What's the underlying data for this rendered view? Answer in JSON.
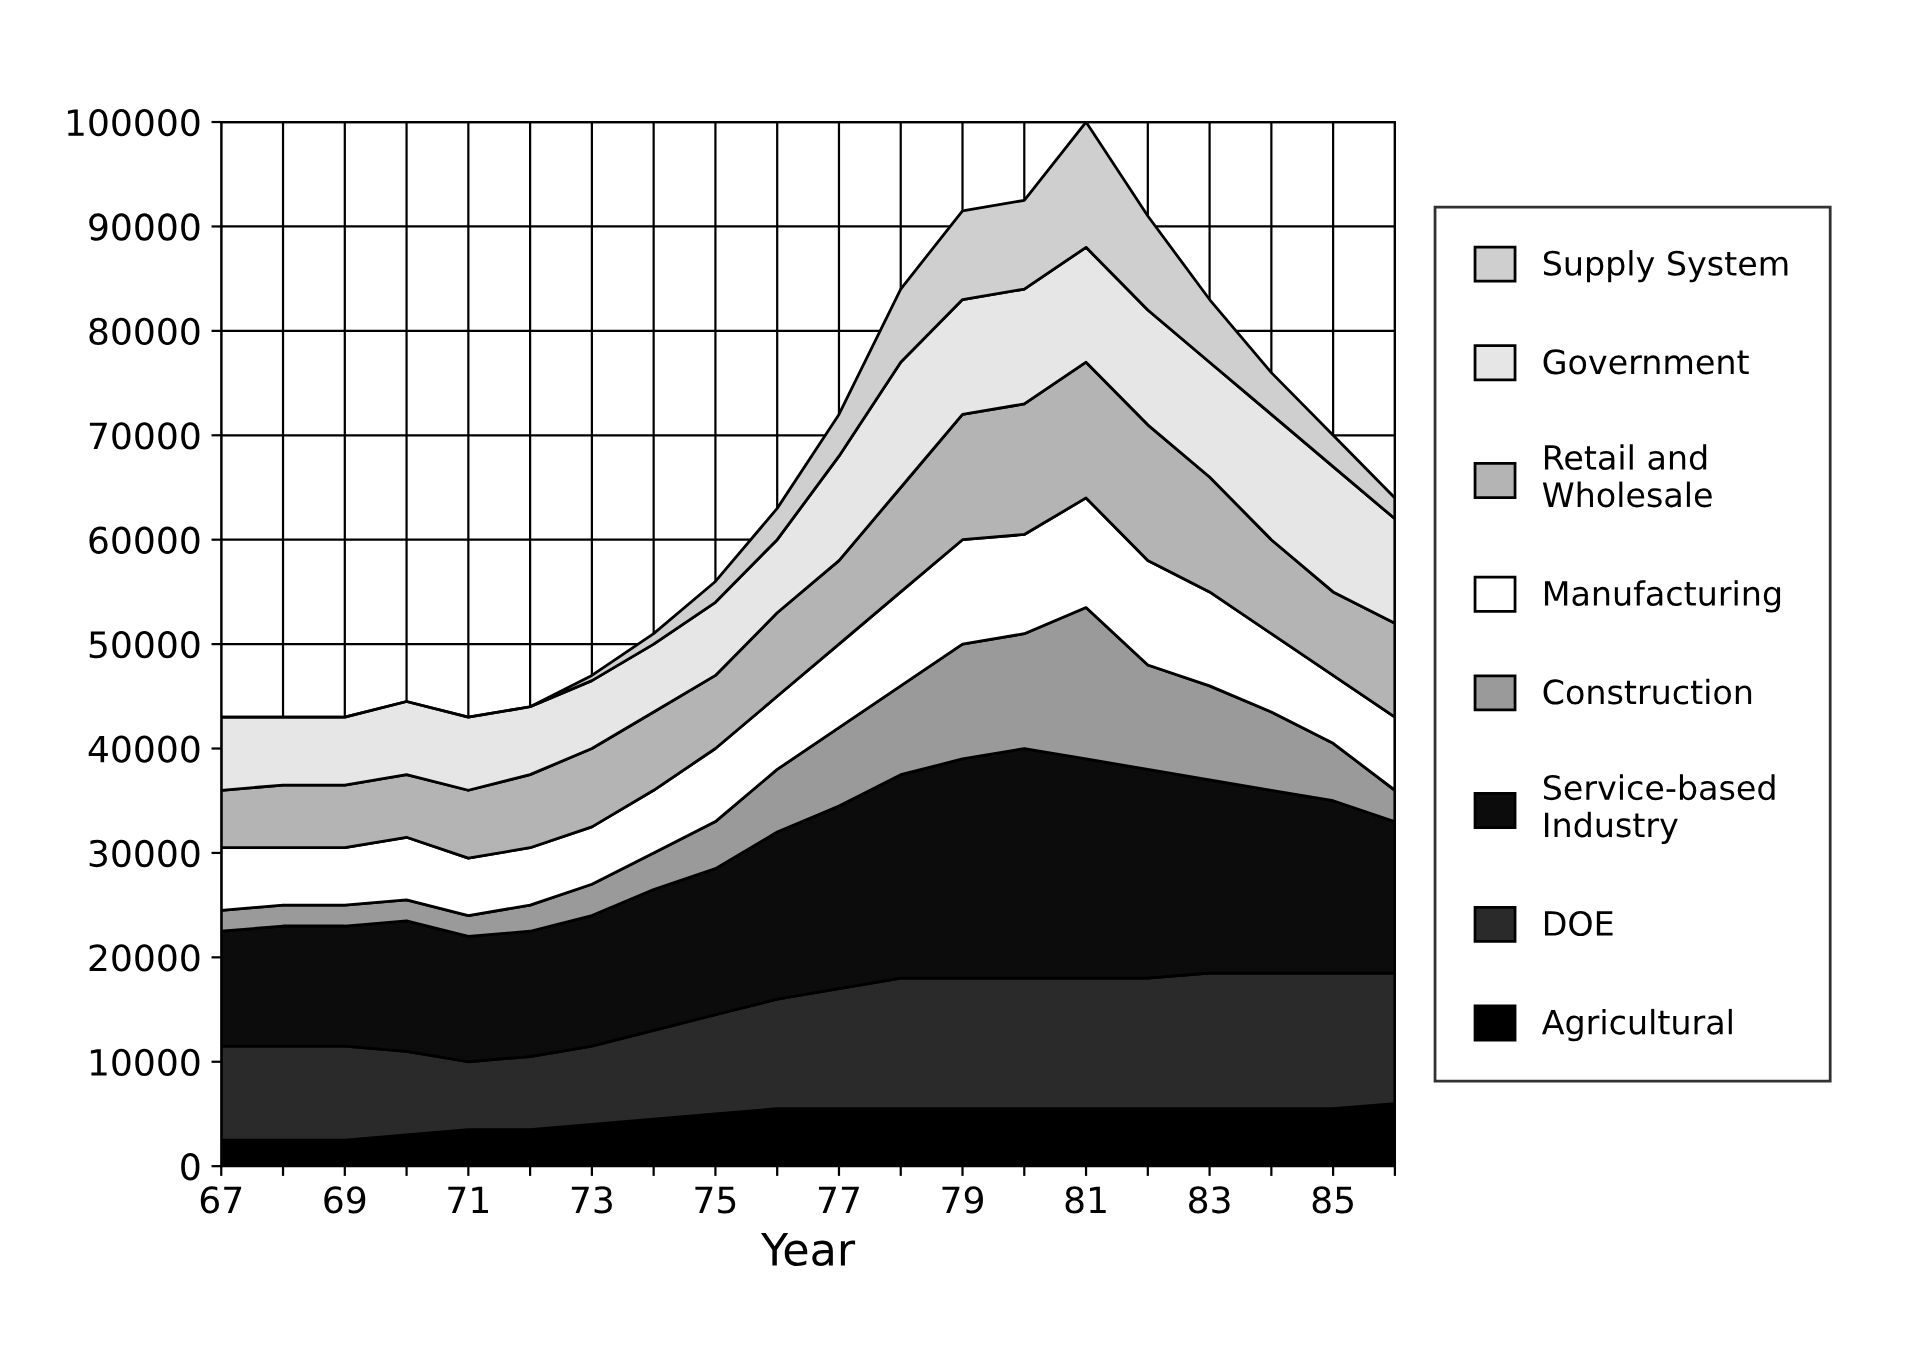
{
  "chart_data": {
    "type": "area",
    "stacked": true,
    "xlabel": "Year",
    "x": [
      67,
      68,
      69,
      70,
      71,
      72,
      73,
      74,
      75,
      76,
      77,
      78,
      79,
      80,
      81,
      82,
      83,
      84,
      85,
      86
    ],
    "xlim": [
      67,
      86
    ],
    "xticks": [
      67,
      {
        "value": 68,
        "label": null
      },
      69,
      {
        "value": 70,
        "label": null
      },
      71,
      {
        "value": 72,
        "label": null
      },
      73,
      {
        "value": 74,
        "label": null
      },
      75,
      {
        "value": 76,
        "label": null
      },
      77,
      {
        "value": 78,
        "label": null
      },
      79,
      {
        "value": 80,
        "label": null
      },
      81,
      {
        "value": 82,
        "label": null
      },
      83,
      {
        "value": 84,
        "label": null
      },
      85,
      {
        "value": 86,
        "label": null
      }
    ],
    "ylim": [
      0,
      100000
    ],
    "yticks": [
      0,
      10000,
      20000,
      30000,
      40000,
      50000,
      60000,
      70000,
      80000,
      90000,
      100000
    ],
    "grid": true,
    "legend": "right",
    "series": [
      {
        "name": "Agricultural",
        "color": "#000000",
        "values": [
          2500,
          2500,
          2500,
          3000,
          3500,
          3500,
          4000,
          4500,
          5000,
          5500,
          5500,
          5500,
          5500,
          5500,
          5500,
          5500,
          5500,
          5500,
          5500,
          6000
        ]
      },
      {
        "name": "DOE",
        "color": "#2a2a2a",
        "values": [
          9000,
          9000,
          9000,
          8000,
          6500,
          7000,
          7500,
          8500,
          9500,
          10500,
          11500,
          12500,
          12500,
          12500,
          12500,
          12500,
          13000,
          13000,
          13000,
          12500
        ]
      },
      {
        "name": "Service-based\nIndustry",
        "color": "#0c0c0c",
        "values": [
          11000,
          11500,
          11500,
          12500,
          12000,
          12000,
          12500,
          13500,
          14000,
          16000,
          17500,
          19500,
          21000,
          22000,
          21000,
          20000,
          18500,
          17500,
          16500,
          14500
        ]
      },
      {
        "name": "Construction",
        "color": "#9a9a9a",
        "values": [
          2000,
          2000,
          2000,
          2000,
          2000,
          2500,
          3000,
          3500,
          4500,
          6000,
          7500,
          8500,
          11000,
          11000,
          14500,
          10000,
          9000,
          7500,
          5500,
          3000
        ]
      },
      {
        "name": "Manufacturing",
        "color": "#ffffff",
        "values": [
          6000,
          5500,
          5500,
          6000,
          5500,
          5500,
          5500,
          6000,
          7000,
          7000,
          8000,
          9000,
          10000,
          9500,
          10500,
          10000,
          9000,
          7500,
          6500,
          7000
        ]
      },
      {
        "name": "Retail and\nWholesale",
        "color": "#b4b4b4",
        "values": [
          5500,
          6000,
          6000,
          6000,
          6500,
          7000,
          7500,
          7500,
          7000,
          8000,
          8000,
          10000,
          12000,
          12500,
          13000,
          13000,
          11000,
          9000,
          8000,
          9000
        ]
      },
      {
        "name": "Government",
        "color": "#e6e6e6",
        "values": [
          7000,
          6500,
          6500,
          7000,
          7000,
          6500,
          6500,
          6500,
          7000,
          7000,
          10000,
          12000,
          11000,
          11000,
          11000,
          11000,
          11000,
          12000,
          12000,
          10000
        ]
      },
      {
        "name": "Supply System",
        "color": "#cfcfcf",
        "values": [
          0,
          0,
          0,
          0,
          0,
          0,
          500,
          1000,
          2000,
          3000,
          4000,
          7000,
          8500,
          8500,
          12000,
          9000,
          6000,
          4000,
          3000,
          2000
        ]
      }
    ]
  }
}
